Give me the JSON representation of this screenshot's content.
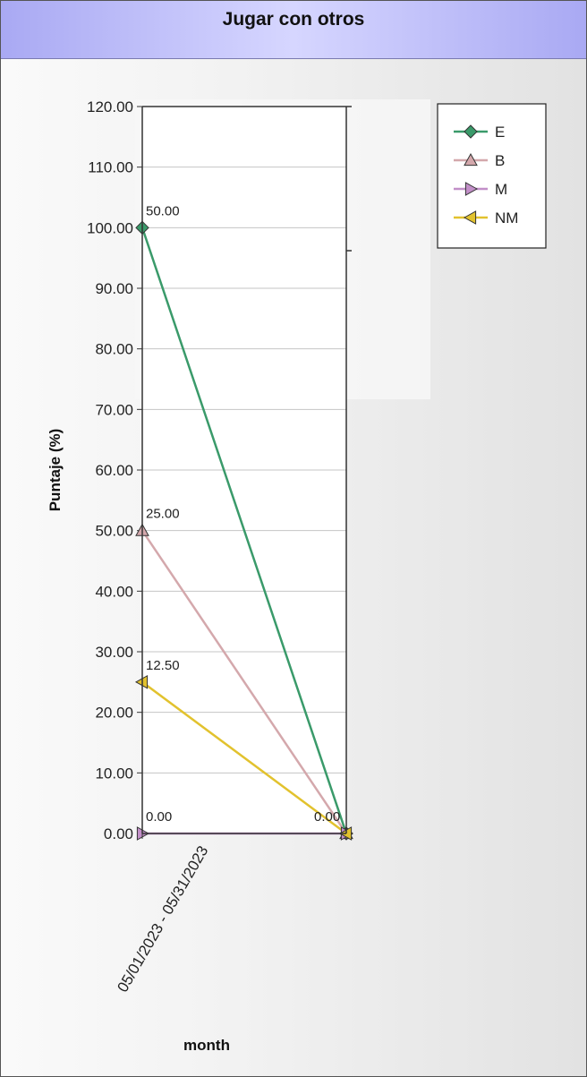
{
  "window": {
    "title": "Jugar con otros"
  },
  "chart_data": {
    "type": "line",
    "title": "Jugar con otros",
    "xlabel": "month",
    "ylabel": "Puntaje (%)",
    "ylim": [
      0,
      120
    ],
    "yticks": [
      "0.00",
      "10.00",
      "20.00",
      "30.00",
      "40.00",
      "50.00",
      "60.00",
      "70.00",
      "80.00",
      "90.00",
      "100.00",
      "110.00",
      "120.00"
    ],
    "categories": [
      "05/01/2023 - 05/31/2023",
      ""
    ],
    "grid": true,
    "legend_position": "top-right",
    "series": [
      {
        "name": "E",
        "values": [
          100,
          0
        ],
        "point_labels": [
          "50.00",
          ""
        ],
        "color": "#3a9a6a",
        "marker": "diamond"
      },
      {
        "name": "B",
        "values": [
          50,
          0
        ],
        "point_labels": [
          "25.00",
          ""
        ],
        "color": "#d4a8ac",
        "marker": "triangle-up"
      },
      {
        "name": "M",
        "values": [
          0,
          0
        ],
        "point_labels": [
          "0.00",
          "0.00"
        ],
        "color": "#c28fc8",
        "marker": "triangle-right"
      },
      {
        "name": "NM",
        "values": [
          25,
          0
        ],
        "point_labels": [
          "12.50",
          ""
        ],
        "color": "#e2c22e",
        "marker": "triangle-left"
      }
    ]
  }
}
